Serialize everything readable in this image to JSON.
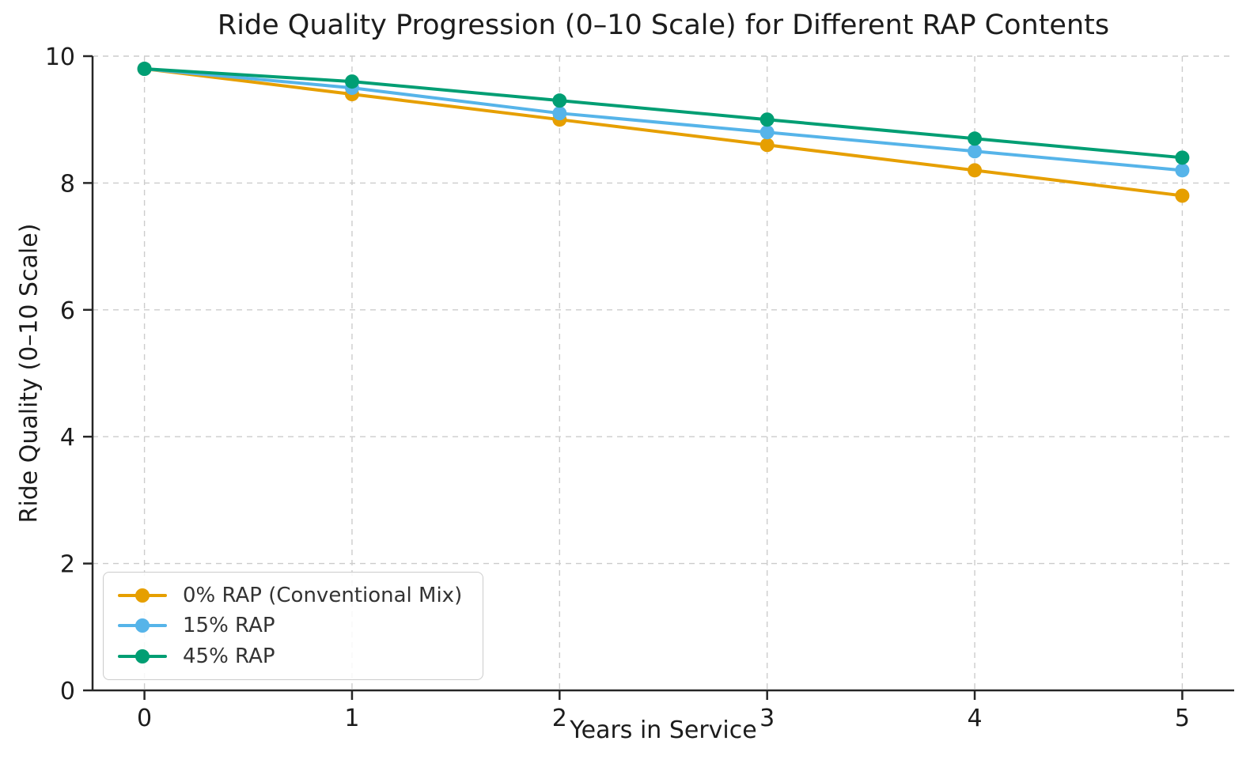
{
  "chart_data": {
    "type": "line",
    "title": "Ride Quality Progression (0–10 Scale) for Different RAP Contents",
    "xlabel": "Years in Service",
    "ylabel": "Ride Quality (0–10 Scale)",
    "x": [
      0,
      1,
      2,
      3,
      4,
      5
    ],
    "xtick_labels": [
      "0",
      "1",
      "2",
      "3",
      "4",
      "5"
    ],
    "yticks": [
      0,
      2,
      4,
      6,
      8,
      10
    ],
    "ytick_labels": [
      "0",
      "2",
      "4",
      "6",
      "8",
      "10"
    ],
    "xlim": [
      -0.25,
      5.25
    ],
    "ylim": [
      0,
      10
    ],
    "grid": true,
    "legend_position": "lower-left",
    "series": [
      {
        "name": "0% RAP (Conventional Mix)",
        "color": "#E69F00",
        "values": [
          9.8,
          9.4,
          9.0,
          8.6,
          8.2,
          7.8
        ]
      },
      {
        "name": "15% RAP",
        "color": "#56B4E9",
        "values": [
          9.8,
          9.5,
          9.1,
          8.8,
          8.5,
          8.2
        ]
      },
      {
        "name": "45% RAP",
        "color": "#009E73",
        "values": [
          9.8,
          9.6,
          9.3,
          9.0,
          8.7,
          8.4
        ]
      }
    ]
  },
  "style": {
    "background": "#ffffff",
    "grid_color": "#cccccc",
    "spine_color": "#262626",
    "tick_text_color": "#1c1c1c",
    "legend_text_color": "#333333",
    "legend_border_color": "#cccccc"
  }
}
